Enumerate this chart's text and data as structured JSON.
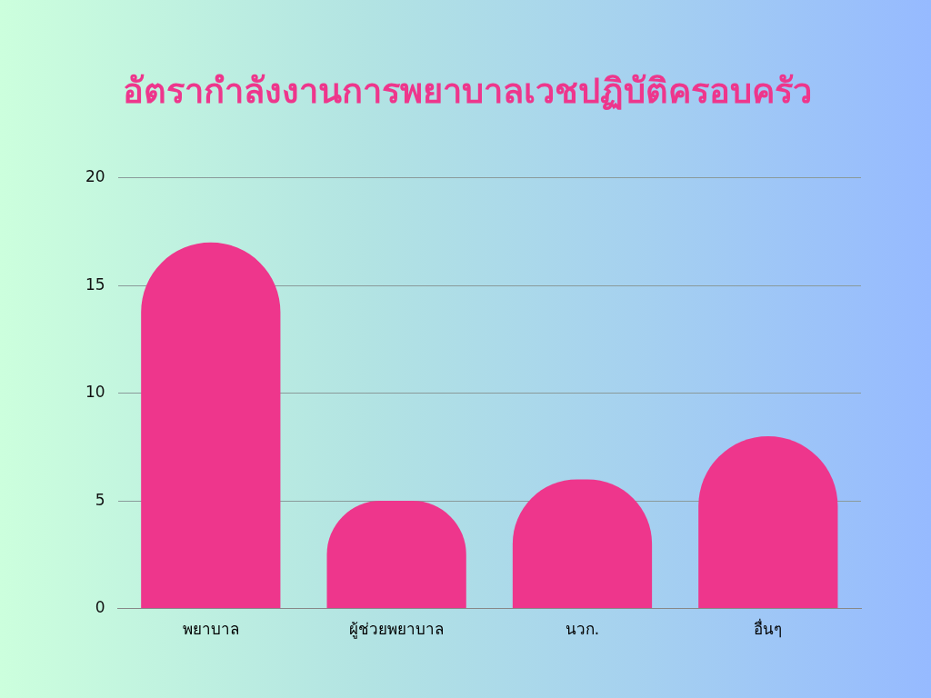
{
  "chart_data": {
    "type": "bar",
    "title": "อัตรากำลังงานการพยาบาลเวชปฏิบัติครอบครัว",
    "categories": [
      "พยาบาล",
      "ผู้ช่วยพยาบาล",
      "นวก.",
      "อื่นๆ"
    ],
    "values": [
      17,
      5,
      6,
      8
    ],
    "color": "#ee368c",
    "ylim": [
      0,
      20
    ],
    "yticks": [
      0,
      5,
      10,
      15,
      20
    ],
    "grid": "y",
    "legend": false
  }
}
